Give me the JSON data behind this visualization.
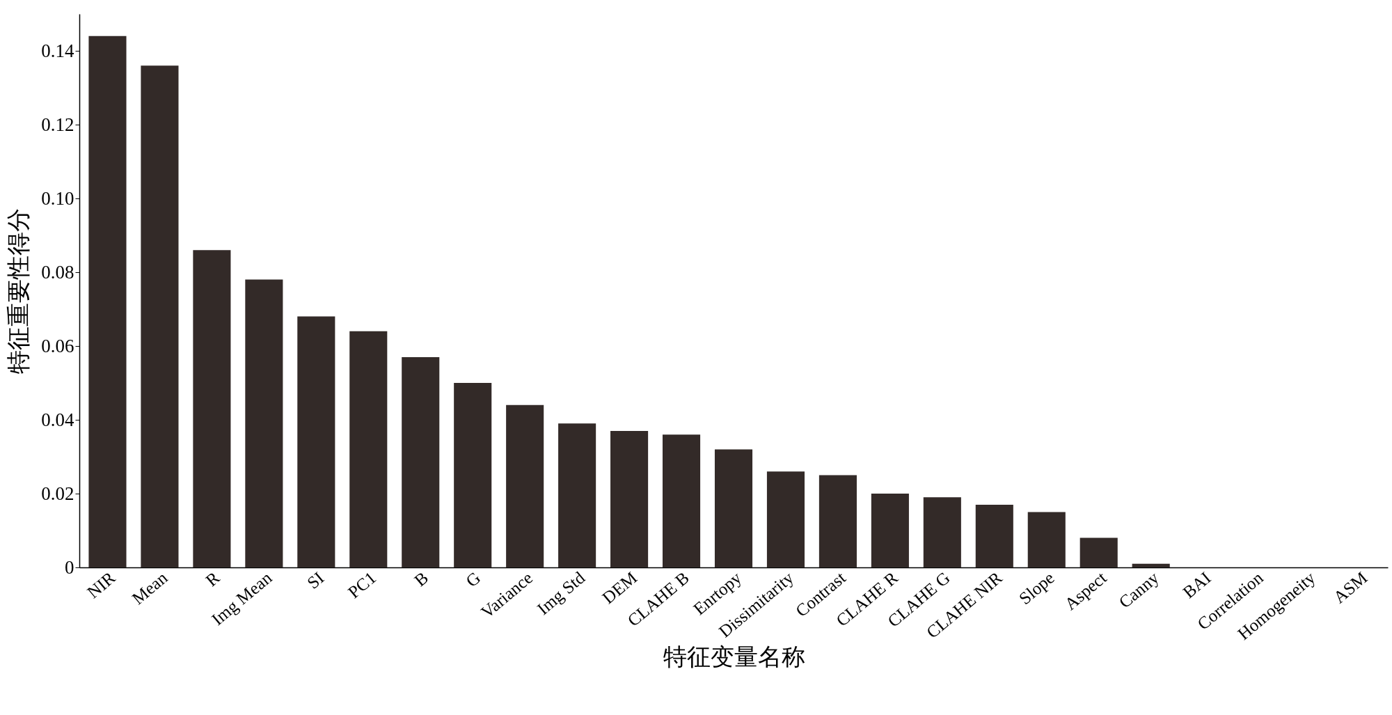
{
  "chart_data": {
    "type": "bar",
    "xlabel": "特征变量名称",
    "ylabel": "特征重要性得分",
    "categories": [
      "NIR",
      "Mean",
      "R",
      "Img Mean",
      "SI",
      "PC1",
      "B",
      "G",
      "Variance",
      "Img Std",
      "DEM",
      "CLAHE B",
      "Enrtopy",
      "Dissimitarity",
      "Contrast",
      "CLAHE R",
      "CLAHE G",
      "CLAHE NIR",
      "Slope",
      "Aspect",
      "Canny",
      "BAI",
      "Correlation",
      "Homogeneity",
      "ASM"
    ],
    "values": [
      0.144,
      0.136,
      0.086,
      0.078,
      0.068,
      0.064,
      0.057,
      0.05,
      0.044,
      0.039,
      0.037,
      0.036,
      0.032,
      0.026,
      0.025,
      0.02,
      0.019,
      0.017,
      0.015,
      0.008,
      0.001,
      0,
      0,
      0,
      0
    ],
    "color": "#332a28",
    "ylim": [
      0,
      0.15
    ],
    "yticks": [
      0,
      0.02,
      0.04,
      0.06,
      0.08,
      {
        "value": 0.1,
        "label": "0.10"
      },
      0.12,
      0.14
    ],
    "grid": false
  }
}
